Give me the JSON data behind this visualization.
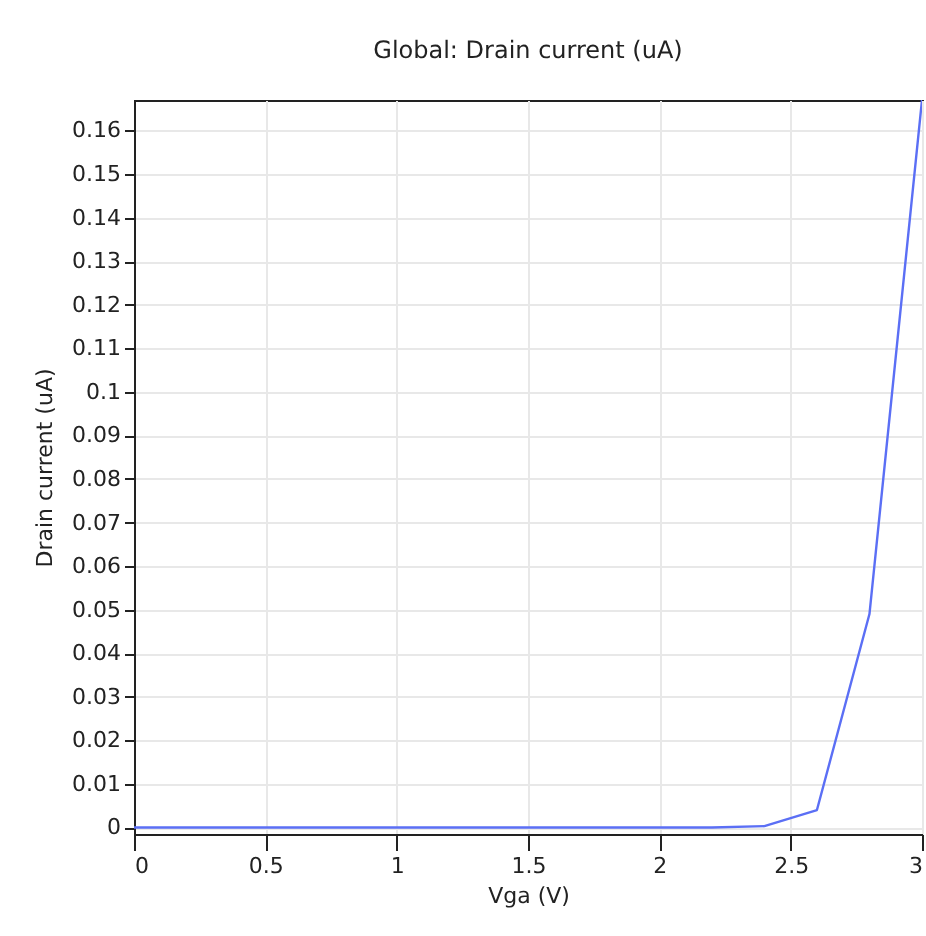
{
  "chart_data": {
    "type": "line",
    "title": "Global: Drain current (uA)",
    "xlabel": "Vga (V)",
    "ylabel": "Drain current (uA)",
    "x": [
      0,
      0.2,
      0.4,
      0.6,
      0.8,
      1,
      1.2,
      1.4,
      1.6,
      1.8,
      2,
      2.2,
      2.4,
      2.6,
      2.8,
      3
    ],
    "series": [
      {
        "color": "#5b6ff5",
        "values": [
          0,
          0,
          0,
          0,
          0,
          0,
          0,
          0,
          0,
          0,
          0,
          0,
          0.0003,
          0.004,
          0.049,
          0.167
        ]
      }
    ],
    "xlim": [
      0,
      3
    ],
    "xticks": [
      0,
      0.5,
      1,
      1.5,
      2,
      2.5,
      3
    ],
    "ylim": [
      -0.0015,
      0.167
    ],
    "yticks": [
      0,
      0.01,
      0.02,
      0.03,
      0.04,
      0.05,
      0.06,
      0.07,
      0.08,
      0.09,
      0.1,
      0.11,
      0.12,
      0.13,
      0.14,
      0.15,
      0.16
    ],
    "grid": true,
    "legend": false,
    "marker": "none",
    "line_style": "solid"
  }
}
